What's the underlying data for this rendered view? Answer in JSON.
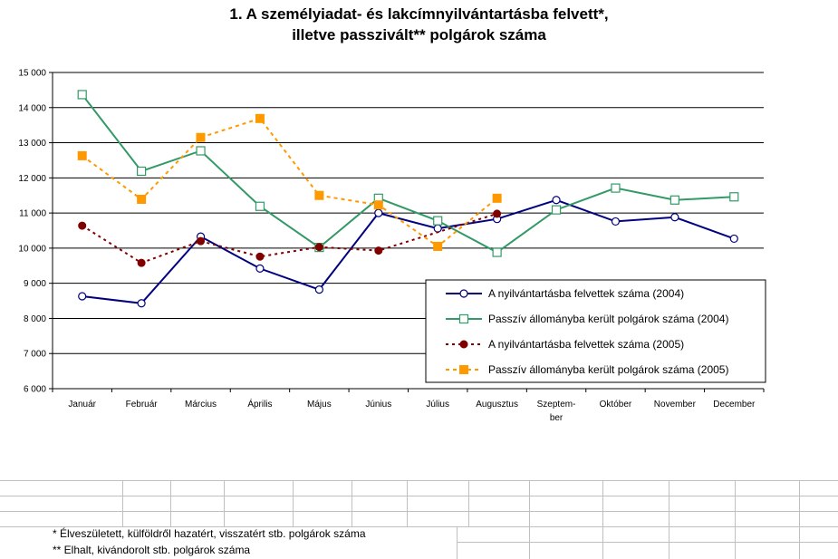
{
  "chart_data": {
    "type": "line",
    "title_line1": "1. A személyiadat- és lakcímnyilvántartásba felvett*,",
    "title_line2": "illetve passzivált** polgárok száma",
    "categories": [
      "Január",
      "Február",
      "Március",
      "Április",
      "Május",
      "Június",
      "Július",
      "Augusztus",
      "Szeptem-ber",
      "Október",
      "November",
      "December"
    ],
    "category_lines": [
      [
        "Január"
      ],
      [
        "Február"
      ],
      [
        "Március"
      ],
      [
        "Április"
      ],
      [
        "Május"
      ],
      [
        "Június"
      ],
      [
        "Július"
      ],
      [
        "Augusztus"
      ],
      [
        "Szeptem-",
        "ber"
      ],
      [
        "Október"
      ],
      [
        "November"
      ],
      [
        "December"
      ]
    ],
    "ylim": [
      6000,
      15000
    ],
    "yticks": [
      6000,
      7000,
      8000,
      9000,
      10000,
      11000,
      12000,
      13000,
      14000,
      15000
    ],
    "ytick_labels": [
      "6 000",
      "7 000",
      "8 000",
      "9 000",
      "10 000",
      "11 000",
      "12 000",
      "13 000",
      "14 000",
      "15 000"
    ],
    "grid": "horizontal",
    "legend_position": "bottom-right",
    "series": [
      {
        "name": "A nyilvántartásba felvettek száma (2004)",
        "color": "#000080",
        "style": "solid",
        "marker": "circle-open",
        "values": [
          8630,
          8430,
          10330,
          9420,
          8820,
          11000,
          10560,
          10830,
          11370,
          10760,
          10880,
          10270
        ]
      },
      {
        "name": "Passzív állományba került polgárok száma (2004)",
        "color": "#339966",
        "style": "solid",
        "marker": "square-open",
        "values": [
          14370,
          12190,
          12770,
          11190,
          10020,
          11420,
          10780,
          9880,
          11090,
          11710,
          11370,
          11460
        ]
      },
      {
        "name": "A nyilvántartásba felvettek száma (2005)",
        "color": "#800000",
        "style": "dotted",
        "marker": "circle-filled",
        "values": [
          10640,
          9580,
          10200,
          9760,
          10030,
          9930,
          null,
          10980,
          null,
          null,
          null,
          null
        ]
      },
      {
        "name": "Passzív állományba került polgárok száma (2005)",
        "color": "#FF9900",
        "style": "dashed",
        "marker": "square-filled",
        "values": [
          12630,
          11390,
          13150,
          13690,
          11500,
          11230,
          10050,
          11420,
          null,
          null,
          null,
          null
        ]
      }
    ]
  },
  "footnotes": {
    "note1": "* Élveszületett, külföldről hazatért, visszatért stb. polgárok száma",
    "note2": "** Elhalt, kivándorolt stb. polgárok száma"
  }
}
